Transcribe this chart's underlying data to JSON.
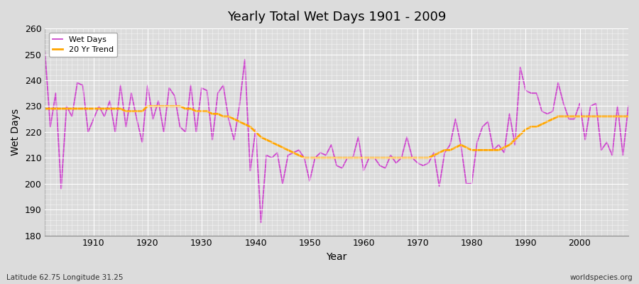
{
  "title": "Yearly Total Wet Days 1901 - 2009",
  "xlabel": "Year",
  "ylabel": "Wet Days",
  "xlim": [
    1901,
    2009
  ],
  "ylim": [
    180,
    260
  ],
  "yticks": [
    180,
    190,
    200,
    210,
    220,
    230,
    240,
    250,
    260
  ],
  "xticks": [
    1910,
    1920,
    1930,
    1940,
    1950,
    1960,
    1970,
    1980,
    1990,
    2000
  ],
  "wet_days_color": "#CC44CC",
  "trend_color": "#FFA500",
  "background_color": "#DCDCDC",
  "plot_bg_color": "#DCDCDC",
  "grid_color": "#FFFFFF",
  "legend_labels": [
    "Wet Days",
    "20 Yr Trend"
  ],
  "subtitle_left": "Latitude 62.75 Longitude 31.25",
  "subtitle_right": "worldspecies.org",
  "years": [
    1901,
    1902,
    1903,
    1904,
    1905,
    1906,
    1907,
    1908,
    1909,
    1910,
    1911,
    1912,
    1913,
    1914,
    1915,
    1916,
    1917,
    1918,
    1919,
    1920,
    1921,
    1922,
    1923,
    1924,
    1925,
    1926,
    1927,
    1928,
    1929,
    1930,
    1931,
    1932,
    1933,
    1934,
    1935,
    1936,
    1937,
    1938,
    1939,
    1940,
    1941,
    1942,
    1943,
    1944,
    1945,
    1946,
    1947,
    1948,
    1949,
    1950,
    1951,
    1952,
    1953,
    1954,
    1955,
    1956,
    1957,
    1958,
    1959,
    1960,
    1961,
    1962,
    1963,
    1964,
    1965,
    1966,
    1967,
    1968,
    1969,
    1970,
    1971,
    1972,
    1973,
    1974,
    1975,
    1976,
    1977,
    1978,
    1979,
    1980,
    1981,
    1982,
    1983,
    1984,
    1985,
    1986,
    1987,
    1988,
    1989,
    1990,
    1991,
    1992,
    1993,
    1994,
    1995,
    1996,
    1997,
    1998,
    1999,
    2000,
    2001,
    2002,
    2003,
    2004,
    2005,
    2006,
    2007,
    2008,
    2009
  ],
  "wet_days": [
    251,
    222,
    235,
    198,
    230,
    226,
    239,
    238,
    220,
    225,
    230,
    226,
    232,
    220,
    238,
    222,
    235,
    225,
    216,
    238,
    225,
    232,
    220,
    237,
    234,
    222,
    220,
    238,
    220,
    237,
    236,
    217,
    235,
    238,
    225,
    217,
    230,
    248,
    205,
    221,
    185,
    211,
    210,
    212,
    200,
    211,
    212,
    213,
    210,
    201,
    210,
    212,
    211,
    215,
    207,
    206,
    210,
    210,
    218,
    205,
    210,
    210,
    207,
    206,
    211,
    208,
    210,
    218,
    210,
    208,
    207,
    208,
    212,
    199,
    212,
    215,
    225,
    215,
    200,
    200,
    216,
    222,
    224,
    213,
    215,
    212,
    227,
    215,
    245,
    236,
    235,
    235,
    228,
    227,
    228,
    239,
    231,
    225,
    225,
    231,
    217,
    230,
    231,
    213,
    216,
    211,
    230,
    211,
    230
  ],
  "trend": [
    229,
    229,
    229,
    229,
    229,
    229,
    229,
    229,
    229,
    229,
    229,
    229,
    229,
    229,
    229,
    228,
    228,
    228,
    228,
    230,
    230,
    230,
    230,
    230,
    230,
    230,
    229,
    229,
    228,
    228,
    228,
    227,
    227,
    226,
    226,
    225,
    224,
    223,
    222,
    220,
    218,
    217,
    216,
    215,
    214,
    213,
    212,
    211,
    210,
    210,
    210,
    210,
    210,
    210,
    210,
    210,
    210,
    210,
    210,
    210,
    210,
    210,
    210,
    210,
    210,
    210,
    210,
    210,
    210,
    210,
    210,
    210,
    211,
    212,
    213,
    213,
    214,
    215,
    214,
    213,
    213,
    213,
    213,
    213,
    213,
    214,
    215,
    217,
    219,
    221,
    222,
    222,
    223,
    224,
    225,
    226,
    226,
    226,
    226,
    226,
    226,
    226,
    226,
    226,
    226,
    226,
    226,
    226,
    226
  ]
}
